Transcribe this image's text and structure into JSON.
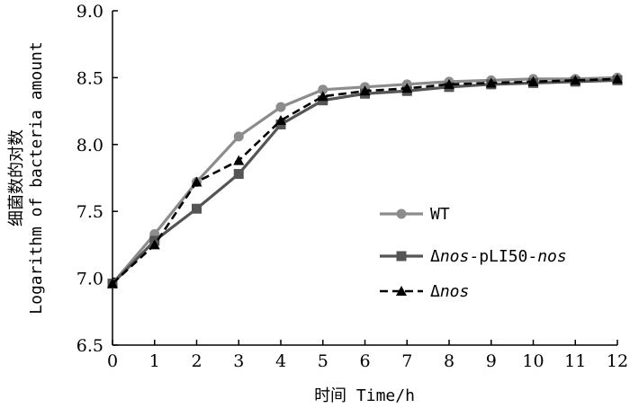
{
  "chart_data": {
    "type": "line",
    "xlabel": "时间 Time/h",
    "ylabel_cn": "细菌数的对数",
    "ylabel_en": "Logarithm of bacteria amount",
    "x": [
      0,
      1,
      2,
      3,
      4,
      5,
      6,
      7,
      8,
      9,
      10,
      11,
      12
    ],
    "xlim": [
      0,
      12
    ],
    "ylim": [
      6.5,
      9.0
    ],
    "xticks": [
      "0",
      "1",
      "2",
      "3",
      "4",
      "5",
      "6",
      "7",
      "8",
      "9",
      "10",
      "11",
      "12"
    ],
    "yticks": [
      "6.5",
      "7.0",
      "7.5",
      "8.0",
      "8.5",
      "9.0"
    ],
    "grid": false,
    "legend_position": "right-middle",
    "series": [
      {
        "legend_parts": [
          {
            "text": "WT",
            "italic": false
          }
        ],
        "color": "#8c8c8c",
        "marker": "circle",
        "line_style": "solid",
        "values": [
          6.96,
          7.33,
          7.72,
          8.06,
          8.28,
          8.41,
          8.43,
          8.45,
          8.47,
          8.48,
          8.49,
          8.49,
          8.5
        ]
      },
      {
        "legend_parts": [
          {
            "text": "Δ",
            "italic": false
          },
          {
            "text": "nos",
            "italic": true
          },
          {
            "text": "-pLI50-",
            "italic": false
          },
          {
            "text": "nos",
            "italic": true
          }
        ],
        "color": "#555555",
        "marker": "square",
        "line_style": "solid",
        "values": [
          6.96,
          7.28,
          7.52,
          7.78,
          8.15,
          8.33,
          8.38,
          8.4,
          8.43,
          8.45,
          8.46,
          8.47,
          8.48
        ]
      },
      {
        "legend_parts": [
          {
            "text": "Δ",
            "italic": false
          },
          {
            "text": "nos",
            "italic": true
          }
        ],
        "color": "#000000",
        "marker": "triangle",
        "line_style": "dashed",
        "values": [
          6.96,
          7.25,
          7.72,
          7.88,
          8.18,
          8.36,
          8.4,
          8.42,
          8.45,
          8.46,
          8.47,
          8.48,
          8.49
        ]
      }
    ]
  }
}
